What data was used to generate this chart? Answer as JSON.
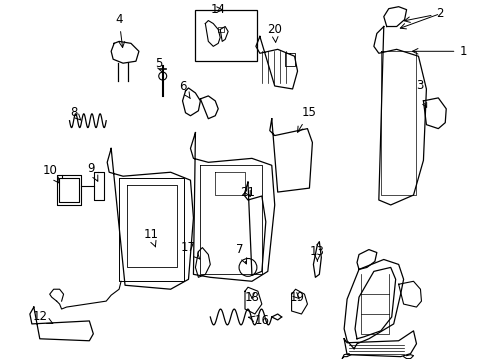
{
  "background_color": "#ffffff",
  "line_color": "#000000",
  "figsize": [
    4.89,
    3.6
  ],
  "dpi": 100,
  "label_fontsize": 8.5
}
